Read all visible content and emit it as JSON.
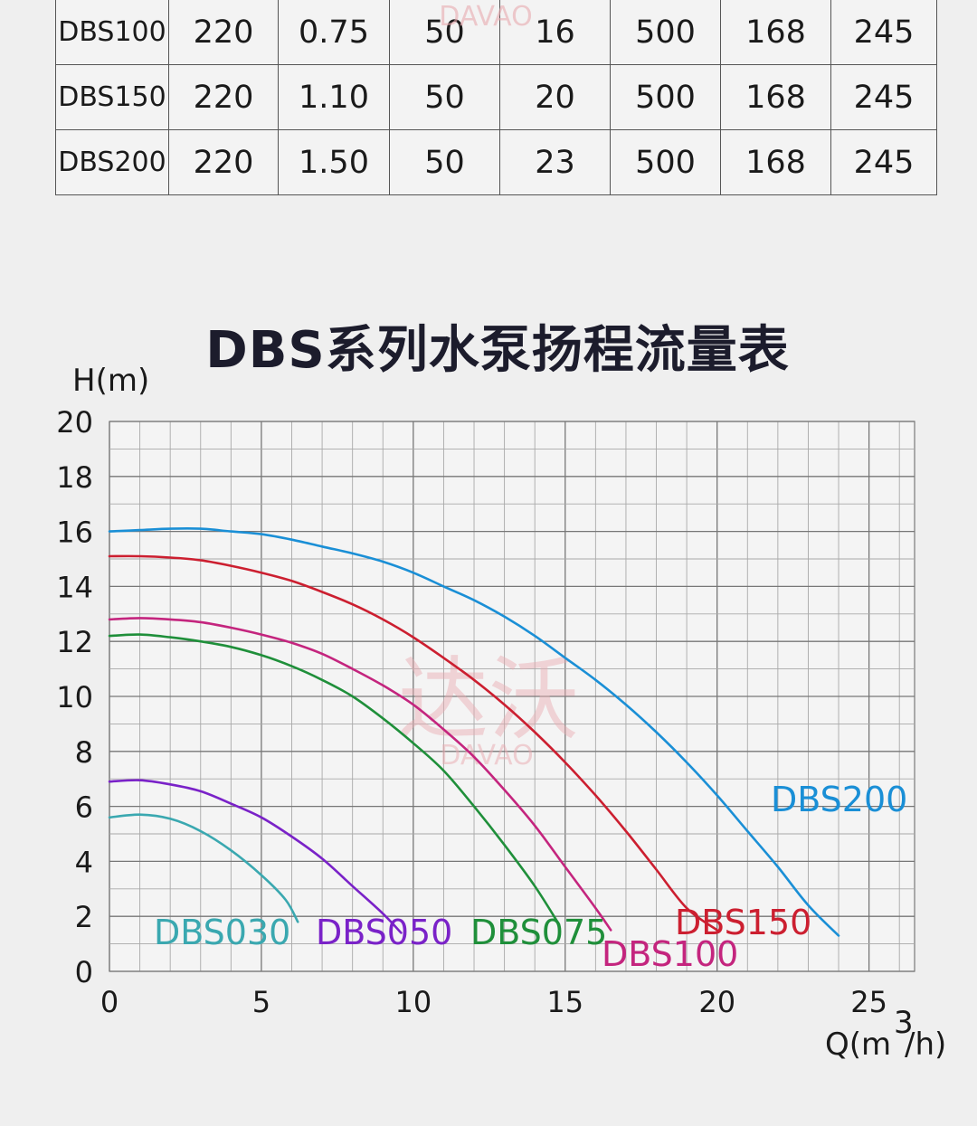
{
  "spec_table": {
    "rows": [
      {
        "model": "DBS100",
        "cells": [
          "220",
          "0.75",
          "50",
          "16",
          "500",
          "168",
          "245"
        ]
      },
      {
        "model": "DBS150",
        "cells": [
          "220",
          "1.10",
          "50",
          "20",
          "500",
          "168",
          "245"
        ]
      },
      {
        "model": "DBS200",
        "cells": [
          "220",
          "1.50",
          "50",
          "23",
          "500",
          "168",
          "245"
        ]
      }
    ]
  },
  "watermark": {
    "top_text": "DAVAO",
    "center_cn": "达沃",
    "center_en": "DAVAO"
  },
  "chart_data": {
    "type": "line",
    "title": "DBS系列水泵扬程流量表",
    "ylabel": "H(m)",
    "xlabel_main": "Q(m",
    "xlabel_sup": "3",
    "xlabel_tail": "/h)",
    "xlim": [
      0,
      26.5
    ],
    "ylim": [
      0,
      20
    ],
    "x_ticks": [
      0,
      5,
      10,
      15,
      20,
      25
    ],
    "y_ticks": [
      0,
      2,
      4,
      6,
      8,
      10,
      12,
      14,
      16,
      18,
      20
    ],
    "grid": true,
    "series": [
      {
        "name": "DBS030",
        "color": "#3aa8b0",
        "points": [
          [
            0,
            5.6
          ],
          [
            1,
            5.7
          ],
          [
            2,
            5.55
          ],
          [
            3,
            5.1
          ],
          [
            4,
            4.4
          ],
          [
            5,
            3.5
          ],
          [
            5.8,
            2.6
          ],
          [
            6.2,
            1.8
          ]
        ]
      },
      {
        "name": "DBS050",
        "color": "#7a22c8",
        "points": [
          [
            0,
            6.9
          ],
          [
            1,
            6.95
          ],
          [
            2,
            6.8
          ],
          [
            3,
            6.55
          ],
          [
            4,
            6.1
          ],
          [
            5,
            5.6
          ],
          [
            6,
            4.9
          ],
          [
            7,
            4.1
          ],
          [
            8,
            3.1
          ],
          [
            9,
            2.1
          ],
          [
            9.6,
            1.4
          ]
        ]
      },
      {
        "name": "DBS075",
        "color": "#1f8f3a",
        "points": [
          [
            0,
            12.2
          ],
          [
            1,
            12.25
          ],
          [
            2,
            12.15
          ],
          [
            3,
            12.0
          ],
          [
            4,
            11.8
          ],
          [
            5,
            11.5
          ],
          [
            6,
            11.1
          ],
          [
            7,
            10.6
          ],
          [
            8,
            10.0
          ],
          [
            9,
            9.2
          ],
          [
            10,
            8.3
          ],
          [
            11,
            7.3
          ],
          [
            12,
            6.0
          ],
          [
            13,
            4.6
          ],
          [
            14,
            3.1
          ],
          [
            14.8,
            1.7
          ]
        ]
      },
      {
        "name": "DBS100",
        "color": "#c4257e",
        "points": [
          [
            0,
            12.8
          ],
          [
            1,
            12.85
          ],
          [
            2,
            12.8
          ],
          [
            3,
            12.7
          ],
          [
            4,
            12.5
          ],
          [
            5,
            12.25
          ],
          [
            6,
            11.95
          ],
          [
            7,
            11.55
          ],
          [
            8,
            11.0
          ],
          [
            9,
            10.4
          ],
          [
            10,
            9.7
          ],
          [
            11,
            8.8
          ],
          [
            12,
            7.8
          ],
          [
            13,
            6.6
          ],
          [
            14,
            5.3
          ],
          [
            15,
            3.8
          ],
          [
            16,
            2.3
          ],
          [
            16.5,
            1.5
          ]
        ]
      },
      {
        "name": "DBS150",
        "color": "#cc1f30",
        "points": [
          [
            0,
            15.1
          ],
          [
            1,
            15.1
          ],
          [
            2,
            15.05
          ],
          [
            3,
            14.95
          ],
          [
            4,
            14.75
          ],
          [
            5,
            14.5
          ],
          [
            6,
            14.2
          ],
          [
            7,
            13.8
          ],
          [
            8,
            13.35
          ],
          [
            9,
            12.8
          ],
          [
            10,
            12.15
          ],
          [
            11,
            11.4
          ],
          [
            12,
            10.6
          ],
          [
            13,
            9.7
          ],
          [
            14,
            8.7
          ],
          [
            15,
            7.6
          ],
          [
            16,
            6.4
          ],
          [
            17,
            5.1
          ],
          [
            18,
            3.7
          ],
          [
            19,
            2.3
          ],
          [
            20,
            1.5
          ]
        ]
      },
      {
        "name": "DBS200",
        "color": "#1a8fd6",
        "points": [
          [
            0,
            16.0
          ],
          [
            1,
            16.05
          ],
          [
            2,
            16.1
          ],
          [
            3,
            16.1
          ],
          [
            4,
            16.0
          ],
          [
            5,
            15.9
          ],
          [
            6,
            15.7
          ],
          [
            7,
            15.45
          ],
          [
            8,
            15.2
          ],
          [
            9,
            14.9
          ],
          [
            10,
            14.5
          ],
          [
            11,
            14.0
          ],
          [
            12,
            13.5
          ],
          [
            13,
            12.9
          ],
          [
            14,
            12.2
          ],
          [
            15,
            11.4
          ],
          [
            16,
            10.6
          ],
          [
            17,
            9.7
          ],
          [
            18,
            8.7
          ],
          [
            19,
            7.6
          ],
          [
            20,
            6.4
          ],
          [
            21,
            5.1
          ],
          [
            22,
            3.8
          ],
          [
            23,
            2.4
          ],
          [
            24,
            1.3
          ]
        ]
      }
    ]
  }
}
